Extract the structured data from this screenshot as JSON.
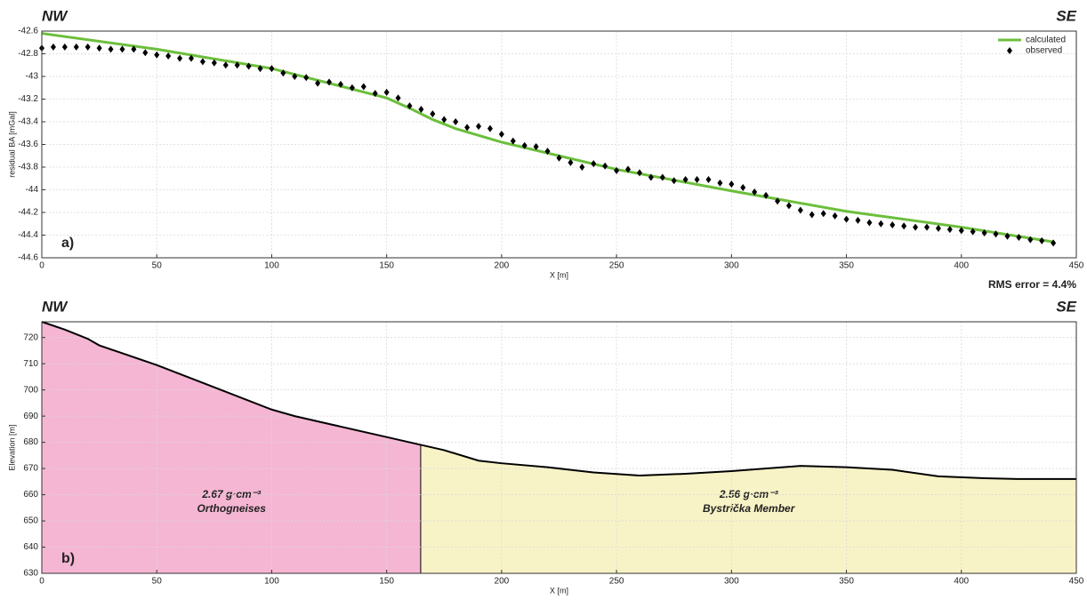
{
  "chart_data": [
    {
      "type": "line",
      "title_left": "NW",
      "title_right": "SE",
      "xlabel": "X [m]",
      "ylabel": "residual BA [mGal]",
      "panel_label": "a)",
      "annotation": "RMS error = 4.4%",
      "xlim": [
        0,
        450
      ],
      "xticks": [
        0,
        50,
        100,
        150,
        200,
        250,
        300,
        350,
        400,
        450
      ],
      "ylim": [
        -44.6,
        -42.6
      ],
      "yticks": [
        -42.6,
        -42.8,
        -43,
        -43.2,
        -43.4,
        -43.6,
        -43.8,
        -44,
        -44.2,
        -44.4,
        -44.6
      ],
      "grid": true,
      "legend": "upper right",
      "series": [
        {
          "name": "calculated",
          "color": "#6cbf3c",
          "marker": "line",
          "x": [
            0,
            50,
            100,
            150,
            160,
            170,
            180,
            200,
            250,
            300,
            350,
            400,
            440
          ],
          "values": [
            -42.62,
            -42.76,
            -42.93,
            -43.19,
            -43.28,
            -43.38,
            -43.46,
            -43.58,
            -43.82,
            -44.01,
            -44.19,
            -44.33,
            -44.46
          ]
        },
        {
          "name": "observed",
          "color": "#000000",
          "marker": "diamond",
          "x": [
            0,
            5,
            10,
            15,
            20,
            25,
            30,
            35,
            40,
            45,
            50,
            55,
            60,
            65,
            70,
            75,
            80,
            85,
            90,
            95,
            100,
            105,
            110,
            115,
            120,
            125,
            130,
            135,
            140,
            145,
            150,
            155,
            160,
            165,
            170,
            175,
            180,
            185,
            190,
            195,
            200,
            205,
            210,
            215,
            220,
            225,
            230,
            235,
            240,
            245,
            250,
            255,
            260,
            265,
            270,
            275,
            280,
            285,
            290,
            295,
            300,
            305,
            310,
            315,
            320,
            325,
            330,
            335,
            340,
            345,
            350,
            355,
            360,
            365,
            370,
            375,
            380,
            385,
            390,
            395,
            400,
            405,
            410,
            415,
            420,
            425,
            430,
            435,
            440
          ],
          "values": [
            -42.75,
            -42.74,
            -42.74,
            -42.74,
            -42.74,
            -42.75,
            -42.76,
            -42.76,
            -42.76,
            -42.79,
            -42.81,
            -42.82,
            -42.84,
            -42.84,
            -42.87,
            -42.88,
            -42.9,
            -42.9,
            -42.91,
            -42.93,
            -42.93,
            -42.97,
            -43,
            -43.01,
            -43.06,
            -43.05,
            -43.07,
            -43.1,
            -43.09,
            -43.15,
            -43.14,
            -43.19,
            -43.26,
            -43.29,
            -43.33,
            -43.38,
            -43.4,
            -43.45,
            -43.44,
            -43.46,
            -43.51,
            -43.57,
            -43.61,
            -43.62,
            -43.66,
            -43.72,
            -43.76,
            -43.8,
            -43.77,
            -43.79,
            -43.83,
            -43.82,
            -43.85,
            -43.89,
            -43.89,
            -43.92,
            -43.91,
            -43.91,
            -43.91,
            -43.94,
            -43.95,
            -43.98,
            -44.02,
            -44.05,
            -44.1,
            -44.14,
            -44.18,
            -44.22,
            -44.21,
            -44.23,
            -44.26,
            -44.27,
            -44.29,
            -44.3,
            -44.31,
            -44.32,
            -44.33,
            -44.33,
            -44.34,
            -44.35,
            -44.36,
            -44.37,
            -44.38,
            -44.39,
            -44.41,
            -44.42,
            -44.44,
            -44.45,
            -44.47
          ]
        }
      ]
    },
    {
      "type": "area",
      "title_left": "NW",
      "title_right": "SE",
      "xlabel": "X [m]",
      "ylabel": "Elevation [m]",
      "panel_label": "b)",
      "xlim": [
        0,
        450
      ],
      "xticks": [
        0,
        50,
        100,
        150,
        200,
        250,
        300,
        350,
        400,
        450
      ],
      "ylim": [
        630,
        726
      ],
      "yticks": [
        630,
        640,
        650,
        660,
        670,
        680,
        690,
        700,
        710,
        720
      ],
      "grid": true,
      "topography": {
        "color": "#000000",
        "x": [
          0,
          10,
          20,
          25,
          50,
          75,
          100,
          110,
          125,
          150,
          165,
          175,
          190,
          200,
          220,
          240,
          260,
          280,
          300,
          330,
          350,
          370,
          390,
          410,
          425,
          440,
          450
        ],
        "values": [
          726,
          723,
          719.5,
          717,
          709.5,
          701,
          692.5,
          690,
          687,
          682,
          679,
          677,
          673,
          672,
          670.5,
          668.5,
          667.3,
          668,
          669,
          671,
          670.5,
          669.5,
          667,
          666.3,
          666,
          666,
          666
        ]
      },
      "bodies": [
        {
          "density": "2.67 g·cm⁻³",
          "name": "Orthogneises",
          "color": "#f5b6d3",
          "xrange": [
            0,
            165
          ]
        },
        {
          "density": "2.56 g·cm⁻³",
          "name": "Bystrička Member",
          "color": "#f8f3c6",
          "xrange": [
            165,
            450
          ]
        }
      ]
    }
  ]
}
